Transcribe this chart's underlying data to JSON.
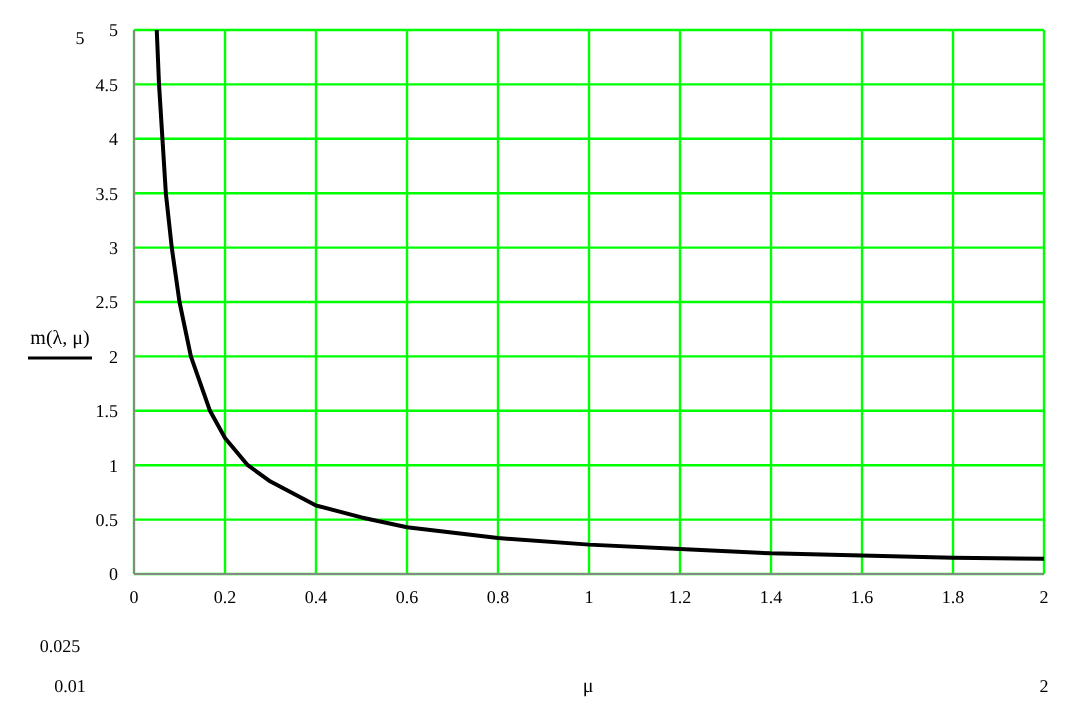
{
  "chart_data": {
    "type": "line",
    "xlabel": "μ",
    "ylabel": "m(λ, μ)",
    "x": [
      0.05,
      0.055,
      0.0625,
      0.07,
      0.083,
      0.1,
      0.125,
      0.167,
      0.2,
      0.25,
      0.3,
      0.4,
      0.5,
      0.6,
      0.8,
      1,
      1.2,
      1.4,
      1.6,
      1.8,
      2
    ],
    "series": [
      {
        "color": "#000000",
        "values": [
          5,
          4.5,
          4,
          3.5,
          3,
          2.5,
          2,
          1.5,
          1.25,
          1,
          0.85,
          0.63,
          0.52,
          0.43,
          0.33,
          0.27,
          0.23,
          0.19,
          0.17,
          0.15,
          0.14
        ]
      }
    ],
    "xlim": [
      0,
      2
    ],
    "xticks": [
      0,
      0.2,
      0.4,
      0.6,
      0.8,
      1,
      1.2,
      1.4,
      1.6,
      1.8,
      2
    ],
    "ylim": [
      0,
      5
    ],
    "yticks": [
      0,
      0.5,
      1,
      1.5,
      2,
      2.5,
      3,
      3.5,
      4,
      4.5,
      5
    ],
    "grid": true,
    "marker": "none",
    "line_style": "solid",
    "legend": false,
    "annotations": [
      "5",
      "0.025",
      "0.01",
      "2"
    ]
  }
}
